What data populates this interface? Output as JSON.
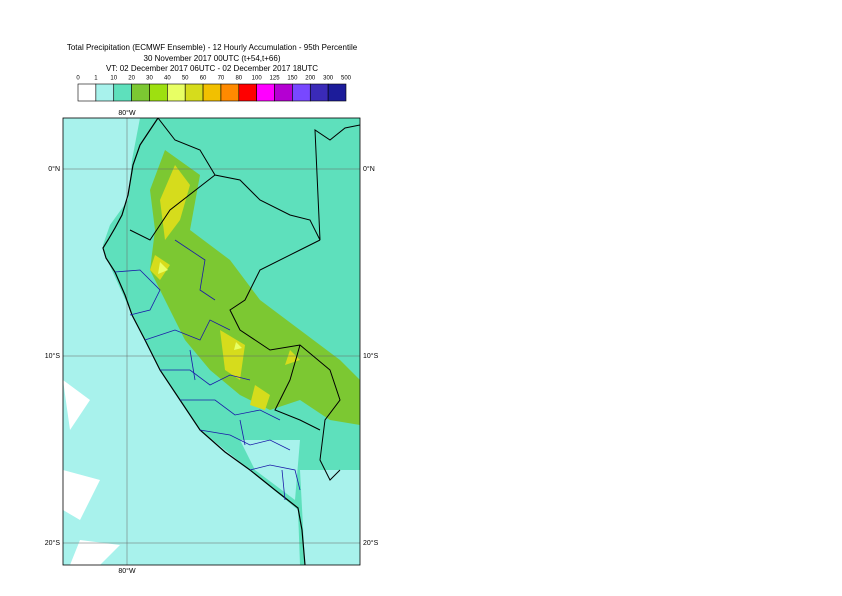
{
  "header": {
    "lines": [
      "Total Precipitation (ECMWF Ensemble) - 12 Hourly Accumulation - 95th Percentile",
      "30 November 2017 00UTC (t+54,t+66)",
      "VT: 02 December 2017 06UTC - 02 December 2017 18UTC"
    ]
  },
  "legend": {
    "labels": [
      0,
      1,
      10,
      20,
      30,
      40,
      50,
      60,
      70,
      80,
      100,
      125,
      150,
      200,
      300,
      500
    ],
    "colors": [
      "#ffffff",
      "#a8f2ec",
      "#5ee0bc",
      "#7cc832",
      "#9ee010",
      "#e8ff64",
      "#d6dc1c",
      "#f2c000",
      "#ff8a00",
      "#ff0000",
      "#ff00ff",
      "#b400d2",
      "#7848ff",
      "#3a2ab8",
      "#1c1c9a",
      "#060660"
    ]
  },
  "map": {
    "lon_label": "80°W",
    "lat_labels": [
      "0°N",
      "10°S",
      "20°S"
    ]
  }
}
